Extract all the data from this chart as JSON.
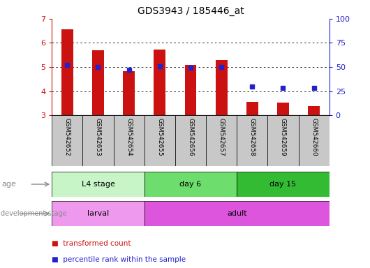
{
  "title": "GDS3943 / 185446_at",
  "samples": [
    "GSM542652",
    "GSM542653",
    "GSM542654",
    "GSM542655",
    "GSM542656",
    "GSM542657",
    "GSM542658",
    "GSM542659",
    "GSM542660"
  ],
  "transformed_count": [
    6.55,
    5.68,
    4.82,
    5.73,
    5.1,
    5.3,
    3.55,
    3.53,
    3.37
  ],
  "transformed_count_bottom": [
    3.0,
    3.0,
    3.0,
    3.0,
    3.0,
    3.0,
    3.0,
    3.0,
    3.0
  ],
  "percentile_rank": [
    52,
    50,
    47,
    51,
    49,
    50,
    30,
    28,
    28
  ],
  "ylim": [
    3.0,
    7.0
  ],
  "yticks_left": [
    3,
    4,
    5,
    6,
    7
  ],
  "yticks_right": [
    0,
    25,
    50,
    75,
    100
  ],
  "age_groups": [
    {
      "label": "L4 stage",
      "start": 0,
      "end": 3,
      "color": "#c8f5c8"
    },
    {
      "label": "day 6",
      "start": 3,
      "end": 6,
      "color": "#6ddd6d"
    },
    {
      "label": "day 15",
      "start": 6,
      "end": 9,
      "color": "#33bb33"
    }
  ],
  "dev_groups": [
    {
      "label": "larval",
      "start": 0,
      "end": 3,
      "color": "#ee99ee"
    },
    {
      "label": "adult",
      "start": 3,
      "end": 9,
      "color": "#dd55dd"
    }
  ],
  "bar_color": "#cc1111",
  "dot_color": "#2222cc",
  "sample_bg_color": "#c8c8c8",
  "ylabel_left_color": "#cc1111",
  "ylabel_right_color": "#2222cc",
  "title_fontsize": 10,
  "tick_fontsize": 8,
  "label_fontsize": 7.5,
  "row_label_color": "#888888"
}
